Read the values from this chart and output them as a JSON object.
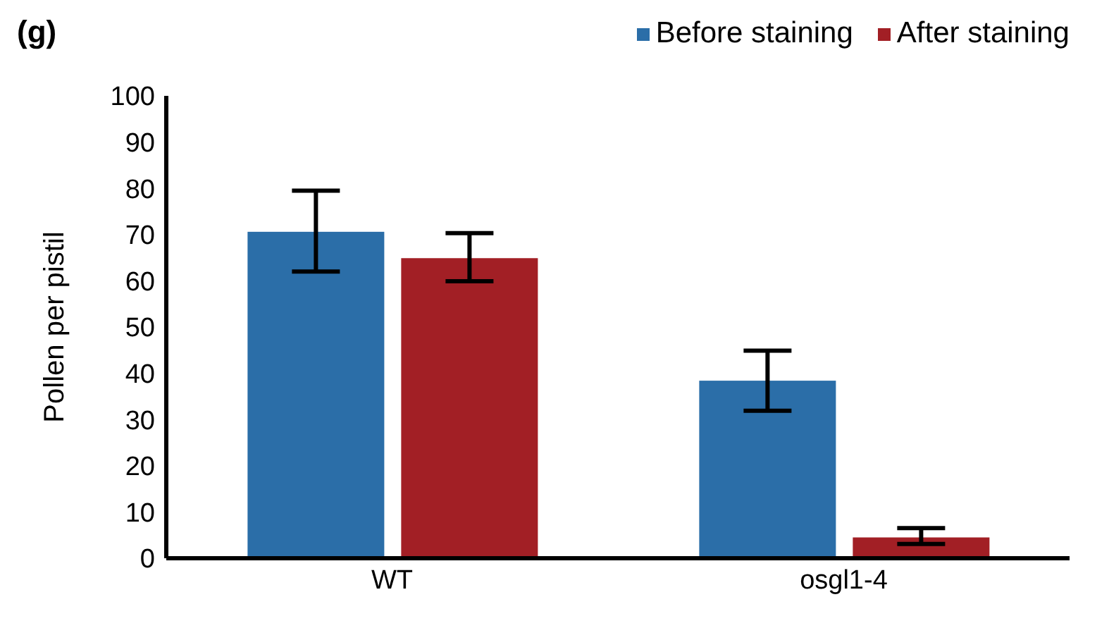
{
  "chart_data": {
    "type": "bar",
    "title": "(g)",
    "ylabel": "Pollen per pistil",
    "categories": [
      "WT",
      "osgl1-4"
    ],
    "series": [
      {
        "name": "Before staining",
        "color": "#2b6ea8",
        "values": [
          70.6,
          38.4
        ],
        "errors": [
          [
            62,
            79.5
          ],
          [
            31.9,
            44.9
          ]
        ]
      },
      {
        "name": "After staining",
        "color": "#a21f25",
        "values": [
          64.9,
          4.5
        ],
        "errors": [
          [
            59.9,
            70.3
          ],
          [
            3.1,
            6.5
          ]
        ]
      }
    ],
    "ylim": [
      0,
      100
    ],
    "yticks": [
      0,
      10,
      20,
      30,
      40,
      50,
      60,
      70,
      80,
      90,
      100
    ],
    "grid": false,
    "legend": "top right"
  }
}
